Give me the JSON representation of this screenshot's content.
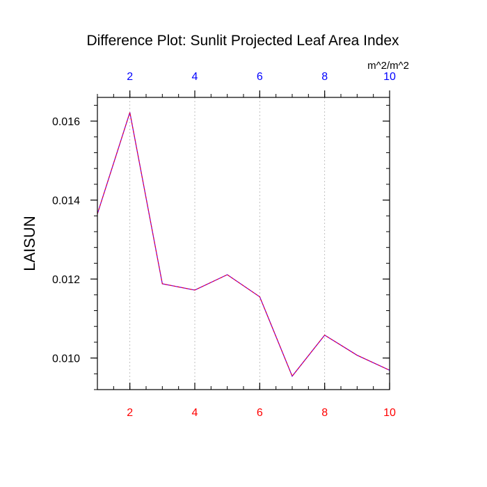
{
  "chart_data": {
    "type": "line",
    "title": "Difference Plot: Sunlit Projected Leaf Area Index",
    "units_label": "m^2/m^2",
    "ylabel": "LAISUN",
    "xlabel": "",
    "xlim": [
      1,
      10
    ],
    "ylim": [
      0.0092,
      0.0166
    ],
    "x_ticks": [
      "2",
      "4",
      "6",
      "8",
      "10"
    ],
    "y_ticks": [
      "0.010",
      "0.012",
      "0.014",
      "0.016"
    ],
    "grid": "vertical dashed at major x ticks",
    "bottom_axis_color": "#ff0000",
    "top_axis_color": "#0000ff",
    "series": [
      {
        "color": "#8800cc",
        "dash_color": "#ff0000",
        "x": [
          1,
          2,
          3,
          4,
          5,
          6,
          7,
          8,
          9,
          10
        ],
        "values": [
          0.01365,
          0.01622,
          0.01188,
          0.01172,
          0.01211,
          0.01155,
          0.00954,
          0.01058,
          0.01007,
          0.00969
        ]
      }
    ]
  }
}
